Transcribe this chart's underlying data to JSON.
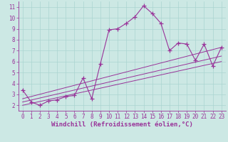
{
  "xlabel": "Windchill (Refroidissement éolien,°C)",
  "background_color": "#cce8e4",
  "grid_color": "#aad4d0",
  "line_color": "#993399",
  "xlim": [
    -0.5,
    23.5
  ],
  "ylim": [
    1.5,
    11.5
  ],
  "yticks": [
    2,
    3,
    4,
    5,
    6,
    7,
    8,
    9,
    10,
    11
  ],
  "xticks": [
    0,
    1,
    2,
    3,
    4,
    5,
    6,
    7,
    8,
    9,
    10,
    11,
    12,
    13,
    14,
    15,
    16,
    17,
    18,
    19,
    20,
    21,
    22,
    23
  ],
  "series1_x": [
    0,
    1,
    2,
    3,
    4,
    5,
    6,
    7,
    8,
    9,
    10,
    11,
    12,
    13,
    14,
    15,
    16,
    17,
    18,
    19,
    20,
    21,
    22,
    23
  ],
  "series1_y": [
    3.4,
    2.3,
    2.0,
    2.4,
    2.5,
    2.8,
    2.9,
    4.5,
    2.6,
    5.8,
    8.9,
    9.0,
    9.5,
    10.1,
    11.1,
    10.4,
    9.5,
    7.0,
    7.7,
    7.6,
    6.1,
    7.6,
    5.6,
    7.3
  ],
  "series2_x": [
    0,
    23
  ],
  "series2_y": [
    2.6,
    7.3
  ],
  "series3_x": [
    0,
    23
  ],
  "series3_y": [
    2.3,
    6.5
  ],
  "series4_x": [
    0,
    23
  ],
  "series4_y": [
    2.0,
    6.0
  ],
  "tick_fontsize": 5.5,
  "label_fontsize": 6.5
}
